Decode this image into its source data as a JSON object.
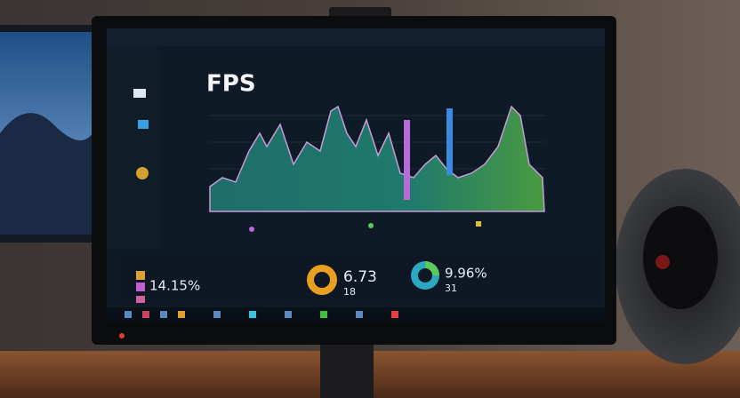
{
  "screen": {
    "chart_title": "FPS",
    "stats": [
      {
        "value": "14.15%"
      },
      {
        "value": "6.73",
        "sub": "18"
      },
      {
        "value": "9.96%",
        "sub": "31"
      }
    ]
  }
}
